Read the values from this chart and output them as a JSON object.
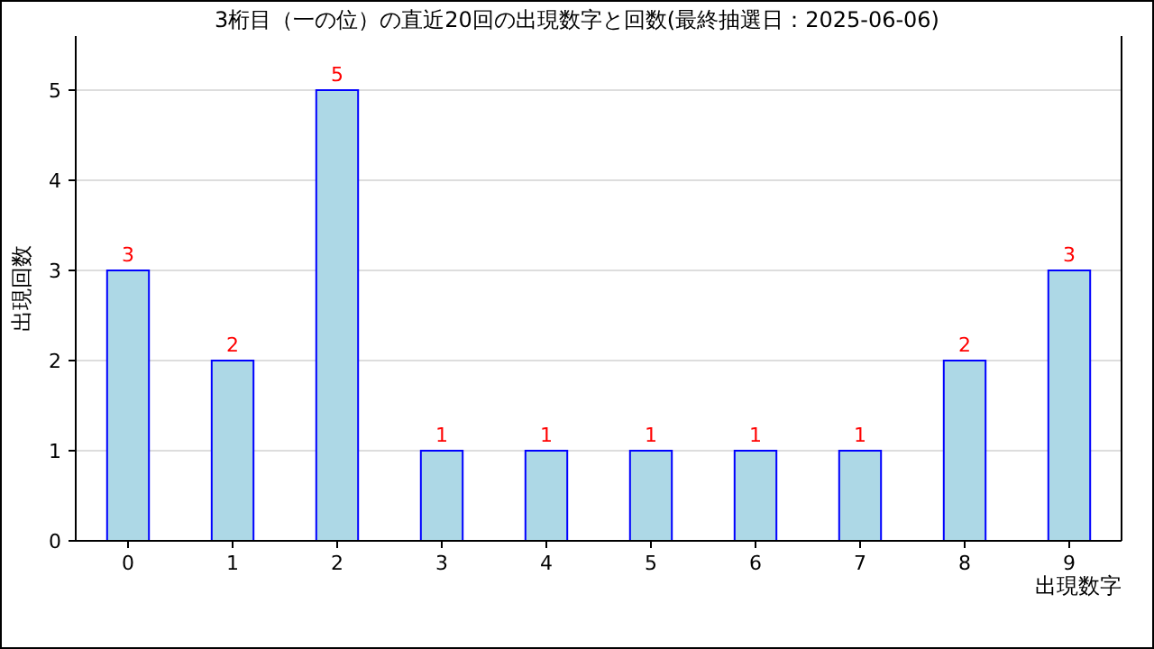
{
  "chart_data": {
    "type": "bar",
    "title": "3桁目（一の位）の直近20回の出現数字と回数(最終抽選日：2025-06-06)",
    "xlabel": "出現数字",
    "ylabel": "出現回数",
    "categories": [
      "0",
      "1",
      "2",
      "3",
      "4",
      "5",
      "6",
      "7",
      "8",
      "9"
    ],
    "values": [
      3,
      2,
      5,
      1,
      1,
      1,
      1,
      1,
      2,
      3
    ],
    "color": "#add8e6",
    "data_labels": true,
    "grid": "y",
    "ylim": [
      0,
      5.6
    ],
    "yticks": [
      0,
      1,
      2,
      3,
      4,
      5
    ]
  }
}
